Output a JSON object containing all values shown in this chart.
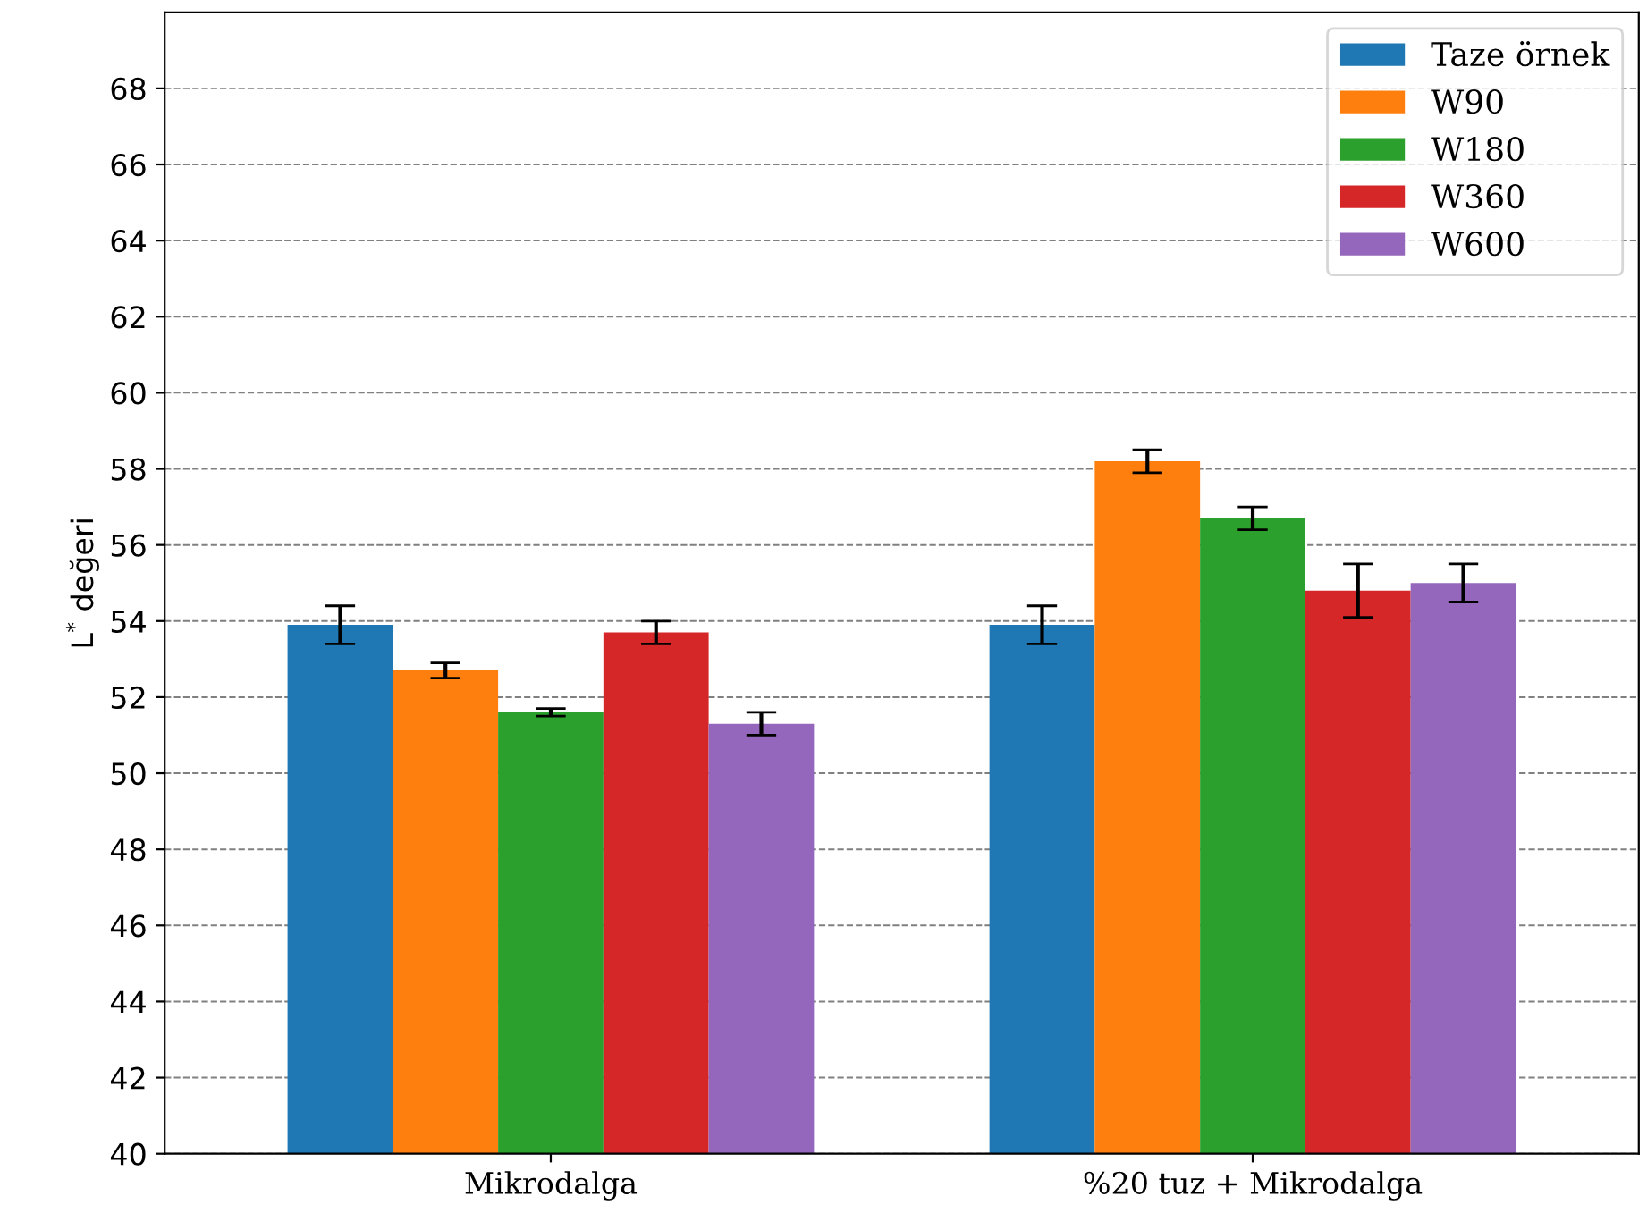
{
  "chart_data": {
    "type": "bar",
    "ylabel": "L$^{*}$ değeri",
    "categories": [
      "Mikrodalga",
      "%20 tuz + Mikrodalga"
    ],
    "series": [
      {
        "name": "Taze örnek",
        "color": "#1f77b4",
        "values": [
          53.9,
          53.9
        ],
        "errors": [
          0.5,
          0.5
        ]
      },
      {
        "name": "W90",
        "color": "#ff7f0e",
        "values": [
          52.7,
          58.2
        ],
        "errors": [
          0.2,
          0.3
        ]
      },
      {
        "name": "W180",
        "color": "#2ca02c",
        "values": [
          51.6,
          56.7
        ],
        "errors": [
          0.1,
          0.3
        ]
      },
      {
        "name": "W360",
        "color": "#d62728",
        "values": [
          53.7,
          54.8
        ],
        "errors": [
          0.3,
          0.7
        ]
      },
      {
        "name": "W600",
        "color": "#9467bd",
        "values": [
          51.3,
          55.0
        ],
        "errors": [
          0.3,
          0.5
        ]
      }
    ],
    "ylim": [
      40,
      70
    ],
    "yticks": [
      40,
      42,
      44,
      46,
      48,
      50,
      52,
      54,
      56,
      58,
      60,
      62,
      64,
      66,
      68
    ],
    "grid": "y",
    "legend": "top right"
  }
}
